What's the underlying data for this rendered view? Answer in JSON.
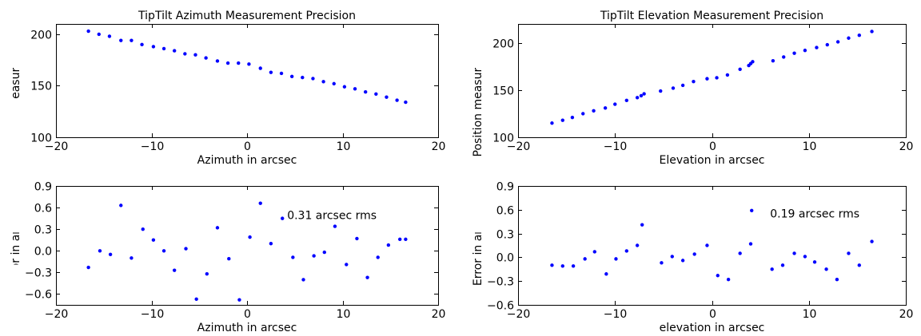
{
  "chart_data": [
    {
      "type": "scatter",
      "title": "TipTilt Azimuth Measurement Precision",
      "xlabel": "Azimuth in arcsec",
      "ylabel": "Position measured in pixels",
      "xlim": [
        -20,
        20
      ],
      "ylim": [
        100,
        210
      ],
      "xticks": [
        "−20",
        "−10",
        "0",
        "10",
        "20"
      ],
      "yticks": [
        "100",
        "150",
        "200"
      ],
      "xtick_values": [
        -20,
        -10,
        0,
        10,
        20
      ],
      "ytick_values": [
        100,
        150,
        200
      ],
      "marker_color": "#0000ff",
      "grid": false,
      "x": [
        -16.6,
        -15.5,
        -14.4,
        -13.2,
        -12.1,
        -11.0,
        -9.8,
        -8.7,
        -7.6,
        -6.5,
        -5.4,
        -4.3,
        -3.1,
        -2.0,
        -0.9,
        0.2,
        1.4,
        2.5,
        3.6,
        4.7,
        5.8,
        6.9,
        8.0,
        9.1,
        10.2,
        11.3,
        12.4,
        13.5,
        14.6,
        15.7,
        16.6
      ],
      "y": [
        203,
        200,
        198,
        194,
        194,
        190,
        188,
        186,
        184,
        181,
        180,
        177,
        174,
        172,
        172,
        171,
        167,
        163,
        162,
        159,
        158,
        157,
        154,
        152,
        149,
        147,
        144,
        142,
        139,
        136,
        134
      ]
    },
    {
      "type": "scatter",
      "title": "TipTilt Elevation Measurement Precision",
      "xlabel": "Elevation in arcsec",
      "ylabel": "Position measured in pixels",
      "xlim": [
        -20,
        20
      ],
      "ylim": [
        100,
        220
      ],
      "xticks": [
        "−20",
        "−10",
        "0",
        "10",
        "20"
      ],
      "yticks": [
        "100",
        "150",
        "200"
      ],
      "xtick_values": [
        -20,
        -10,
        0,
        10,
        20
      ],
      "ytick_values": [
        100,
        150,
        200
      ],
      "marker_color": "#0000ff",
      "grid": false,
      "x": [
        -16.5,
        -15.4,
        -14.4,
        -13.3,
        -12.2,
        -11.0,
        -10.0,
        -8.8,
        -7.7,
        -7.3,
        -7.0,
        -5.3,
        -4.0,
        -3.0,
        -1.9,
        -0.5,
        0.5,
        1.6,
        2.9,
        3.8,
        4.0,
        4.2,
        6.3,
        7.4,
        8.5,
        9.6,
        10.8,
        11.9,
        13.0,
        14.1,
        15.2,
        16.5
      ],
      "y": [
        115,
        118,
        121,
        125,
        128,
        131,
        135,
        139,
        142,
        144,
        146,
        149,
        152,
        155,
        159,
        162,
        163,
        166,
        172,
        176,
        178,
        180,
        181,
        185,
        189,
        192,
        195,
        198,
        201,
        205,
        208,
        212
      ]
    },
    {
      "type": "scatter",
      "title": "",
      "xlabel": "Azimuth in arcsec",
      "ylabel": "Error in arcsec",
      "xlim": [
        -20,
        20
      ],
      "ylim": [
        -0.75,
        0.9
      ],
      "xticks": [
        "−20",
        "−10",
        "0",
        "10",
        "20"
      ],
      "yticks": [
        "−0.6",
        "−0.3",
        "0.0",
        "0.3",
        "0.6",
        "0.9"
      ],
      "xtick_values": [
        -20,
        -10,
        0,
        10,
        20
      ],
      "ytick_values": [
        -0.6,
        -0.3,
        0.0,
        0.3,
        0.6,
        0.9
      ],
      "annotation": "0.31 arcsec rms",
      "annotation_at": [
        4.2,
        0.44
      ],
      "marker_color": "#0000ff",
      "grid": false,
      "x": [
        -16.6,
        -15.4,
        -14.3,
        -13.2,
        -12.1,
        -10.9,
        -9.8,
        -8.7,
        -7.6,
        -6.4,
        -5.3,
        -4.2,
        -3.1,
        -1.9,
        -0.8,
        0.3,
        1.4,
        2.5,
        3.7,
        4.8,
        5.9,
        7.0,
        8.1,
        9.2,
        10.4,
        11.5,
        12.6,
        13.7,
        14.8,
        16.0,
        16.6
      ],
      "y": [
        -0.23,
        0.0,
        -0.05,
        0.63,
        -0.1,
        0.3,
        0.15,
        0.0,
        -0.27,
        0.03,
        -0.67,
        -0.32,
        0.32,
        -0.11,
        -0.68,
        0.19,
        0.66,
        0.1,
        0.45,
        -0.09,
        -0.4,
        -0.07,
        -0.02,
        0.34,
        -0.19,
        0.17,
        -0.37,
        -0.09,
        0.08,
        0.16,
        0.16
      ]
    },
    {
      "type": "scatter",
      "title": "",
      "xlabel": "elevation in arcsec",
      "ylabel": "Error in arcsec",
      "xlim": [
        -20,
        20
      ],
      "ylim": [
        -0.6,
        0.9
      ],
      "xticks": [
        "−20",
        "−10",
        "0",
        "10",
        "20"
      ],
      "yticks": [
        "−0.6",
        "−0.3",
        "0.0",
        "0.3",
        "0.6",
        "0.9"
      ],
      "xtick_values": [
        -20,
        -10,
        0,
        10,
        20
      ],
      "ytick_values": [
        -0.6,
        -0.3,
        0.0,
        0.3,
        0.6,
        0.9
      ],
      "annotation": "0.19 arcsec rms",
      "annotation_at": [
        6.0,
        0.5
      ],
      "marker_color": "#0000ff",
      "grid": false,
      "x": [
        -16.5,
        -15.4,
        -14.3,
        -13.1,
        -12.1,
        -10.9,
        -9.9,
        -8.8,
        -7.7,
        -7.2,
        -5.2,
        -4.1,
        -3.0,
        -1.8,
        -0.5,
        0.6,
        1.7,
        2.9,
        4.0,
        4.1,
        6.2,
        7.3,
        8.5,
        9.6,
        10.6,
        11.8,
        12.9,
        14.1,
        15.2,
        16.5
      ],
      "y": [
        -0.1,
        -0.11,
        -0.11,
        -0.02,
        0.07,
        -0.21,
        -0.02,
        0.08,
        0.15,
        0.41,
        -0.07,
        0.01,
        -0.04,
        0.04,
        0.15,
        -0.23,
        -0.28,
        0.05,
        0.17,
        0.59,
        -0.15,
        -0.1,
        0.05,
        0.01,
        -0.06,
        -0.15,
        -0.28,
        0.05,
        -0.1,
        0.2
      ]
    }
  ]
}
